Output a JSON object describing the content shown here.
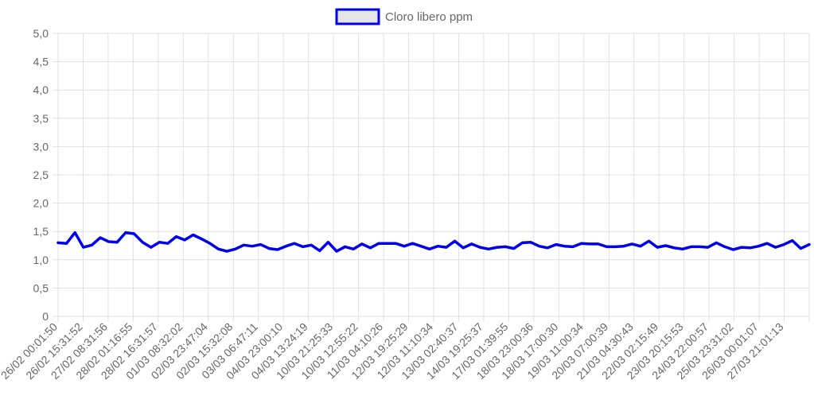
{
  "chart_data": {
    "type": "line",
    "legend": {
      "position": "top-center",
      "label": "Cloro libero ppm"
    },
    "ylim": [
      0,
      5
    ],
    "y_ticks": [
      "0",
      "0,5",
      "1,0",
      "1,5",
      "2,0",
      "2,5",
      "3,0",
      "3,5",
      "4,0",
      "4,5",
      "5,0"
    ],
    "x_tick_labels": [
      "26/02 00:01:50",
      "26/02 15:31:52",
      "27/02 08:31:56",
      "28/02 01:16:55",
      "28/02 16:31:57",
      "01/03 08:32:02",
      "02/03 23:47:04",
      "02/03 15:32:08",
      "03/03 06:47:11",
      "04/03 23:00:10",
      "04/03 13:24:19",
      "10/03 21:25:33",
      "10/03 12:55:22",
      "11/03 04:10:26",
      "12/03 19:25:29",
      "12/03 11:10:34",
      "13/03 02:40:37",
      "14/03 19:25:37",
      "17/03 01:39:55",
      "18/03 23:00:36",
      "18/03 17:00:30",
      "19/03 11:00:34",
      "20/03 07:00:39",
      "21/03 04:30:43",
      "22/03 02:15:49",
      "23/03 20:15:53",
      "24/03 22:00:57",
      "25/03 23:31:02",
      "26/03 00:01:07",
      "27/03 21:01:13"
    ],
    "grid": true,
    "series": [
      {
        "name": "Cloro libero ppm",
        "color": "#0000ee",
        "fill": "#e5e5e5",
        "values": [
          1.3,
          1.29,
          1.48,
          1.22,
          1.26,
          1.39,
          1.32,
          1.31,
          1.48,
          1.46,
          1.31,
          1.22,
          1.31,
          1.29,
          1.41,
          1.35,
          1.44,
          1.37,
          1.29,
          1.19,
          1.15,
          1.19,
          1.26,
          1.24,
          1.27,
          1.2,
          1.18,
          1.24,
          1.29,
          1.23,
          1.26,
          1.16,
          1.31,
          1.15,
          1.23,
          1.19,
          1.28,
          1.21,
          1.29,
          1.29,
          1.29,
          1.24,
          1.29,
          1.24,
          1.19,
          1.24,
          1.22,
          1.33,
          1.21,
          1.28,
          1.22,
          1.19,
          1.22,
          1.23,
          1.2,
          1.3,
          1.31,
          1.24,
          1.21,
          1.27,
          1.24,
          1.23,
          1.29,
          1.28,
          1.28,
          1.23,
          1.23,
          1.24,
          1.28,
          1.24,
          1.33,
          1.22,
          1.25,
          1.21,
          1.19,
          1.23,
          1.23,
          1.22,
          1.3,
          1.23,
          1.18,
          1.22,
          1.21,
          1.24,
          1.29,
          1.22,
          1.27,
          1.34,
          1.2,
          1.27
        ]
      }
    ]
  }
}
